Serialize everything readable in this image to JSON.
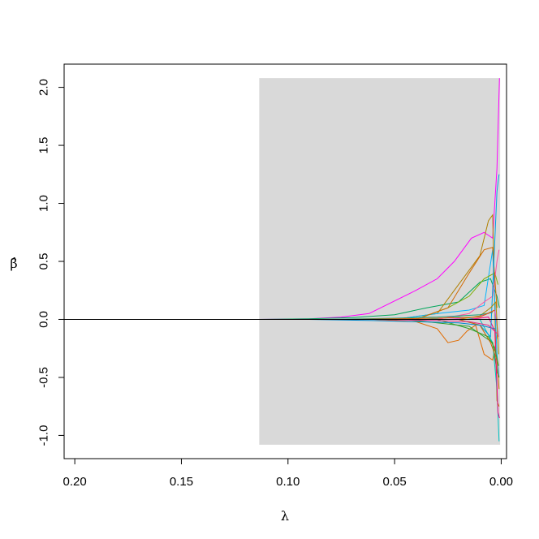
{
  "chart_data": {
    "type": "line",
    "title": "",
    "xlabel": "λ",
    "ylabel": "β̂",
    "x_reversed": true,
    "xlim": [
      0.205,
      -0.0025
    ],
    "ylim": [
      -1.2,
      2.2
    ],
    "x_ticks": [
      0.2,
      0.15,
      0.1,
      0.05,
      0.0
    ],
    "x_tick_labels": [
      "0.20",
      "0.15",
      "0.10",
      "0.05",
      "0.00"
    ],
    "y_ticks": [
      -1.0,
      -0.5,
      0.0,
      0.5,
      1.0,
      1.5,
      2.0
    ],
    "y_tick_labels": [
      "-1.0",
      "-0.5",
      "0.0",
      "0.5",
      "1.0",
      "1.5",
      "2.0"
    ],
    "shaded_region": {
      "x": [
        0.0005,
        0.1135
      ],
      "y": [
        -1.08,
        2.08
      ],
      "color": "#d9d9d9"
    },
    "reference_line": {
      "y": 0,
      "color": "#000000"
    },
    "grid": false,
    "legend": "none",
    "series": [
      {
        "color": "#ff00ff",
        "x": [
          0.114,
          0.09,
          0.075,
          0.062,
          0.04,
          0.03,
          0.022,
          0.014,
          0.008,
          0.004,
          0.002,
          0.0008
        ],
        "y": [
          0.0,
          0.005,
          0.02,
          0.05,
          0.25,
          0.35,
          0.5,
          0.7,
          0.75,
          0.7,
          1.3,
          2.08
        ]
      },
      {
        "color": "#00a65a",
        "x": [
          0.114,
          0.09,
          0.07,
          0.05,
          0.035,
          0.02,
          0.01,
          0.005,
          0.002,
          0.0008
        ],
        "y": [
          0.0,
          0.005,
          0.015,
          0.04,
          0.1,
          0.15,
          0.32,
          0.35,
          0.2,
          0.1
        ]
      },
      {
        "color": "#e06b00",
        "x": [
          0.06,
          0.04,
          0.03,
          0.025,
          0.02,
          0.016,
          0.012,
          0.008,
          0.004,
          0.0015
        ],
        "y": [
          0.0,
          -0.02,
          -0.08,
          -0.2,
          -0.18,
          -0.1,
          -0.05,
          -0.3,
          -0.35,
          -0.1
        ]
      },
      {
        "color": "#b08000",
        "x": [
          0.05,
          0.03,
          0.02,
          0.01,
          0.006,
          0.004,
          0.002,
          0.001
        ],
        "y": [
          0.0,
          0.05,
          0.3,
          0.55,
          0.85,
          0.9,
          -0.7,
          -0.75
        ]
      },
      {
        "color": "#00b4ff",
        "x": [
          0.05,
          0.03,
          0.015,
          0.008,
          0.004,
          0.002,
          0.001
        ],
        "y": [
          0.0,
          0.05,
          0.08,
          0.12,
          0.6,
          -0.3,
          -0.5
        ]
      },
      {
        "color": "#00c2c2",
        "x": [
          0.035,
          0.02,
          0.01,
          0.004,
          0.002,
          0.001
        ],
        "y": [
          0.0,
          0.02,
          0.0,
          -0.2,
          -0.6,
          -1.05
        ]
      },
      {
        "color": "#2ca02c",
        "x": [
          0.045,
          0.03,
          0.015,
          0.008,
          0.004,
          0.002,
          0.001
        ],
        "y": [
          0.0,
          -0.03,
          -0.06,
          -0.15,
          -0.2,
          -0.45,
          -0.5
        ]
      },
      {
        "color": "#7cae00",
        "x": [
          0.04,
          0.025,
          0.015,
          0.008,
          0.003,
          0.0015
        ],
        "y": [
          0.0,
          0.1,
          0.2,
          0.35,
          0.4,
          0.3
        ]
      },
      {
        "color": "#ff4fa0",
        "x": [
          0.03,
          0.015,
          0.008,
          0.004,
          0.002,
          0.001
        ],
        "y": [
          0.0,
          0.05,
          0.15,
          0.2,
          0.5,
          0.6
        ]
      },
      {
        "color": "#d26900",
        "x": [
          0.04,
          0.025,
          0.015,
          0.008,
          0.004,
          0.002
        ],
        "y": [
          0.0,
          0.1,
          0.4,
          0.6,
          0.62,
          0.1
        ]
      },
      {
        "color": "#ff0080",
        "x": [
          0.015,
          0.006,
          0.003,
          0.0015,
          0.0008
        ],
        "y": [
          0.0,
          0.02,
          -0.1,
          -0.8,
          -0.85
        ]
      },
      {
        "color": "#00a0e0",
        "x": [
          0.02,
          0.01,
          0.005,
          0.002,
          0.001
        ],
        "y": [
          0.0,
          -0.05,
          -0.15,
          1.1,
          1.25
        ]
      },
      {
        "color": "#cc6600",
        "x": [
          0.02,
          0.01,
          0.005,
          0.002,
          0.001
        ],
        "y": [
          0.0,
          -0.05,
          -0.2,
          -0.35,
          -0.6
        ]
      },
      {
        "color": "#33a02c",
        "x": [
          0.03,
          0.015,
          0.006,
          0.003,
          0.0012
        ],
        "y": [
          0.0,
          -0.08,
          -0.15,
          -0.25,
          -0.4
        ]
      },
      {
        "color": "#e34ad6",
        "x": [
          0.025,
          0.012,
          0.006,
          0.003,
          0.0012
        ],
        "y": [
          0.0,
          0.02,
          0.05,
          0.08,
          -0.15
        ]
      },
      {
        "color": "#aa8800",
        "x": [
          0.02,
          0.01,
          0.005,
          0.0025,
          0.0012
        ],
        "y": [
          0.0,
          0.03,
          0.1,
          0.15,
          -0.3
        ]
      },
      {
        "color": "#0088cc",
        "x": [
          0.09,
          0.06,
          0.04,
          0.02,
          0.01,
          0.003
        ],
        "y": [
          0.0,
          -0.01,
          -0.02,
          -0.03,
          -0.05,
          -0.08
        ]
      },
      {
        "color": "#1b9e77",
        "x": [
          0.08,
          0.05,
          0.03,
          0.01,
          0.004
        ],
        "y": [
          0.0,
          0.01,
          0.02,
          0.04,
          0.06
        ]
      },
      {
        "color": "#d95f02",
        "x": [
          0.07,
          0.05,
          0.03,
          0.01,
          0.003
        ],
        "y": [
          0.0,
          0.005,
          0.01,
          0.02,
          0.08
        ]
      },
      {
        "color": "#e7298a",
        "x": [
          0.06,
          0.03,
          0.015,
          0.006,
          0.002
        ],
        "y": [
          0.0,
          -0.01,
          -0.02,
          -0.05,
          -0.12
        ]
      }
    ]
  }
}
